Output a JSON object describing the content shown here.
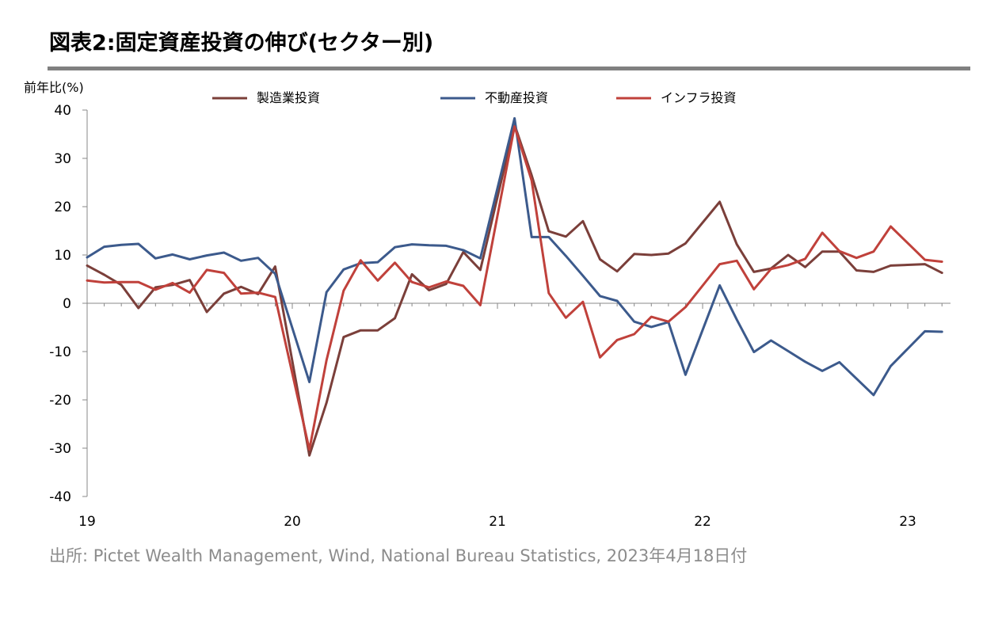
{
  "page": {
    "title": "図表2:固定資産投資の伸び(セクター別)",
    "source": "出所: Pictet Wealth Management, Wind, National Bureau Statistics, 2023年4月18日付"
  },
  "chart_data": {
    "type": "line",
    "ylabel": "前年比(%)",
    "ylim": [
      -40,
      40
    ],
    "yticks": [
      "40",
      "30",
      "20",
      "10",
      "0",
      "-10",
      "-20",
      "-30",
      "-40"
    ],
    "xtick_labels": [
      {
        "label": "19",
        "x": 0
      },
      {
        "label": "20",
        "x": 12
      },
      {
        "label": "21",
        "x": 24
      },
      {
        "label": "22",
        "x": 36
      },
      {
        "label": "23",
        "x": 48
      }
    ],
    "xlim": [
      0,
      50.5
    ],
    "legend_position": "top",
    "grid": false,
    "series": [
      {
        "name": "製造業投資",
        "color": "#7b3f3a",
        "points": [
          [
            0,
            7.8
          ],
          [
            1,
            5.9
          ],
          [
            2,
            3.8
          ],
          [
            3,
            -1.0
          ],
          [
            4,
            3.3
          ],
          [
            5,
            3.8
          ],
          [
            6,
            4.8
          ],
          [
            7,
            -1.8
          ],
          [
            8,
            2.0
          ],
          [
            9,
            3.4
          ],
          [
            10,
            1.9
          ],
          [
            11,
            7.6
          ],
          [
            13,
            -31.5
          ],
          [
            14,
            -20.6
          ],
          [
            15,
            -7.0
          ],
          [
            16,
            -5.6
          ],
          [
            17,
            -5.6
          ],
          [
            18,
            -3.1
          ],
          [
            19,
            6.0
          ],
          [
            20,
            2.7
          ],
          [
            21,
            4.0
          ],
          [
            22,
            10.6
          ],
          [
            23,
            6.9
          ],
          [
            25,
            37.0
          ],
          [
            26,
            26.5
          ],
          [
            27,
            14.9
          ],
          [
            28,
            13.8
          ],
          [
            29,
            17.0
          ],
          [
            30,
            9.1
          ],
          [
            31,
            6.6
          ],
          [
            32,
            10.2
          ],
          [
            33,
            10.0
          ],
          [
            34,
            10.3
          ],
          [
            35,
            12.4
          ],
          [
            37,
            21.0
          ],
          [
            38,
            12.2
          ],
          [
            39,
            6.5
          ],
          [
            40,
            7.2
          ],
          [
            41,
            10.0
          ],
          [
            42,
            7.5
          ],
          [
            43,
            10.7
          ],
          [
            44,
            10.7
          ],
          [
            45,
            6.8
          ],
          [
            46,
            6.5
          ],
          [
            47,
            7.8
          ],
          [
            49,
            8.1
          ],
          [
            50,
            6.3
          ]
        ]
      },
      {
        "name": "不動産投資",
        "color": "#3c5a8c",
        "points": [
          [
            0,
            9.5
          ],
          [
            1,
            11.7
          ],
          [
            2,
            12.1
          ],
          [
            3,
            12.3
          ],
          [
            4,
            9.3
          ],
          [
            5,
            10.1
          ],
          [
            6,
            9.1
          ],
          [
            7,
            9.9
          ],
          [
            8,
            10.5
          ],
          [
            9,
            8.8
          ],
          [
            10,
            9.4
          ],
          [
            11,
            6.1
          ],
          [
            13,
            -16.3
          ],
          [
            14,
            2.3
          ],
          [
            15,
            7.0
          ],
          [
            16,
            8.3
          ],
          [
            17,
            8.5
          ],
          [
            18,
            11.6
          ],
          [
            19,
            12.2
          ],
          [
            20,
            12.0
          ],
          [
            21,
            11.9
          ],
          [
            22,
            11.0
          ],
          [
            23,
            9.3
          ],
          [
            25,
            38.3
          ],
          [
            26,
            13.7
          ],
          [
            27,
            13.7
          ],
          [
            28,
            9.8
          ],
          [
            29,
            5.7
          ],
          [
            30,
            1.5
          ],
          [
            31,
            0.5
          ],
          [
            32,
            -3.8
          ],
          [
            33,
            -4.9
          ],
          [
            34,
            -3.9
          ],
          [
            35,
            -14.8
          ],
          [
            37,
            3.7
          ],
          [
            38,
            -3.4
          ],
          [
            39,
            -10.1
          ],
          [
            40,
            -7.7
          ],
          [
            41,
            -9.9
          ],
          [
            42,
            -12.1
          ],
          [
            43,
            -14.0
          ],
          [
            44,
            -12.2
          ],
          [
            45,
            -15.6
          ],
          [
            46,
            -19.0
          ],
          [
            47,
            -13.0
          ],
          [
            49,
            -5.8
          ],
          [
            50,
            -5.9
          ]
        ]
      },
      {
        "name": "インフラ投資",
        "color": "#c0413b",
        "points": [
          [
            0,
            4.7
          ],
          [
            1,
            4.3
          ],
          [
            2,
            4.4
          ],
          [
            3,
            4.4
          ],
          [
            4,
            2.8
          ],
          [
            5,
            4.2
          ],
          [
            6,
            2.2
          ],
          [
            7,
            6.9
          ],
          [
            8,
            6.3
          ],
          [
            9,
            2.0
          ],
          [
            10,
            2.2
          ],
          [
            11,
            1.3
          ],
          [
            13,
            -30.3
          ],
          [
            14,
            -11.8
          ],
          [
            15,
            2.6
          ],
          [
            16,
            8.9
          ],
          [
            17,
            4.7
          ],
          [
            18,
            8.4
          ],
          [
            19,
            4.4
          ],
          [
            20,
            3.3
          ],
          [
            21,
            4.5
          ],
          [
            22,
            3.6
          ],
          [
            23,
            -0.4
          ],
          [
            25,
            36.6
          ],
          [
            26,
            25.4
          ],
          [
            27,
            2.1
          ],
          [
            28,
            -3.0
          ],
          [
            29,
            0.3
          ],
          [
            30,
            -11.2
          ],
          [
            31,
            -7.6
          ],
          [
            32,
            -6.4
          ],
          [
            33,
            -2.8
          ],
          [
            34,
            -3.8
          ],
          [
            35,
            -0.8
          ],
          [
            37,
            8.1
          ],
          [
            38,
            8.8
          ],
          [
            39,
            2.9
          ],
          [
            40,
            7.1
          ],
          [
            41,
            7.9
          ],
          [
            42,
            9.2
          ],
          [
            43,
            14.6
          ],
          [
            44,
            10.8
          ],
          [
            45,
            9.4
          ],
          [
            46,
            10.7
          ],
          [
            47,
            15.9
          ],
          [
            49,
            9.0
          ],
          [
            50,
            8.6
          ]
        ]
      }
    ]
  }
}
